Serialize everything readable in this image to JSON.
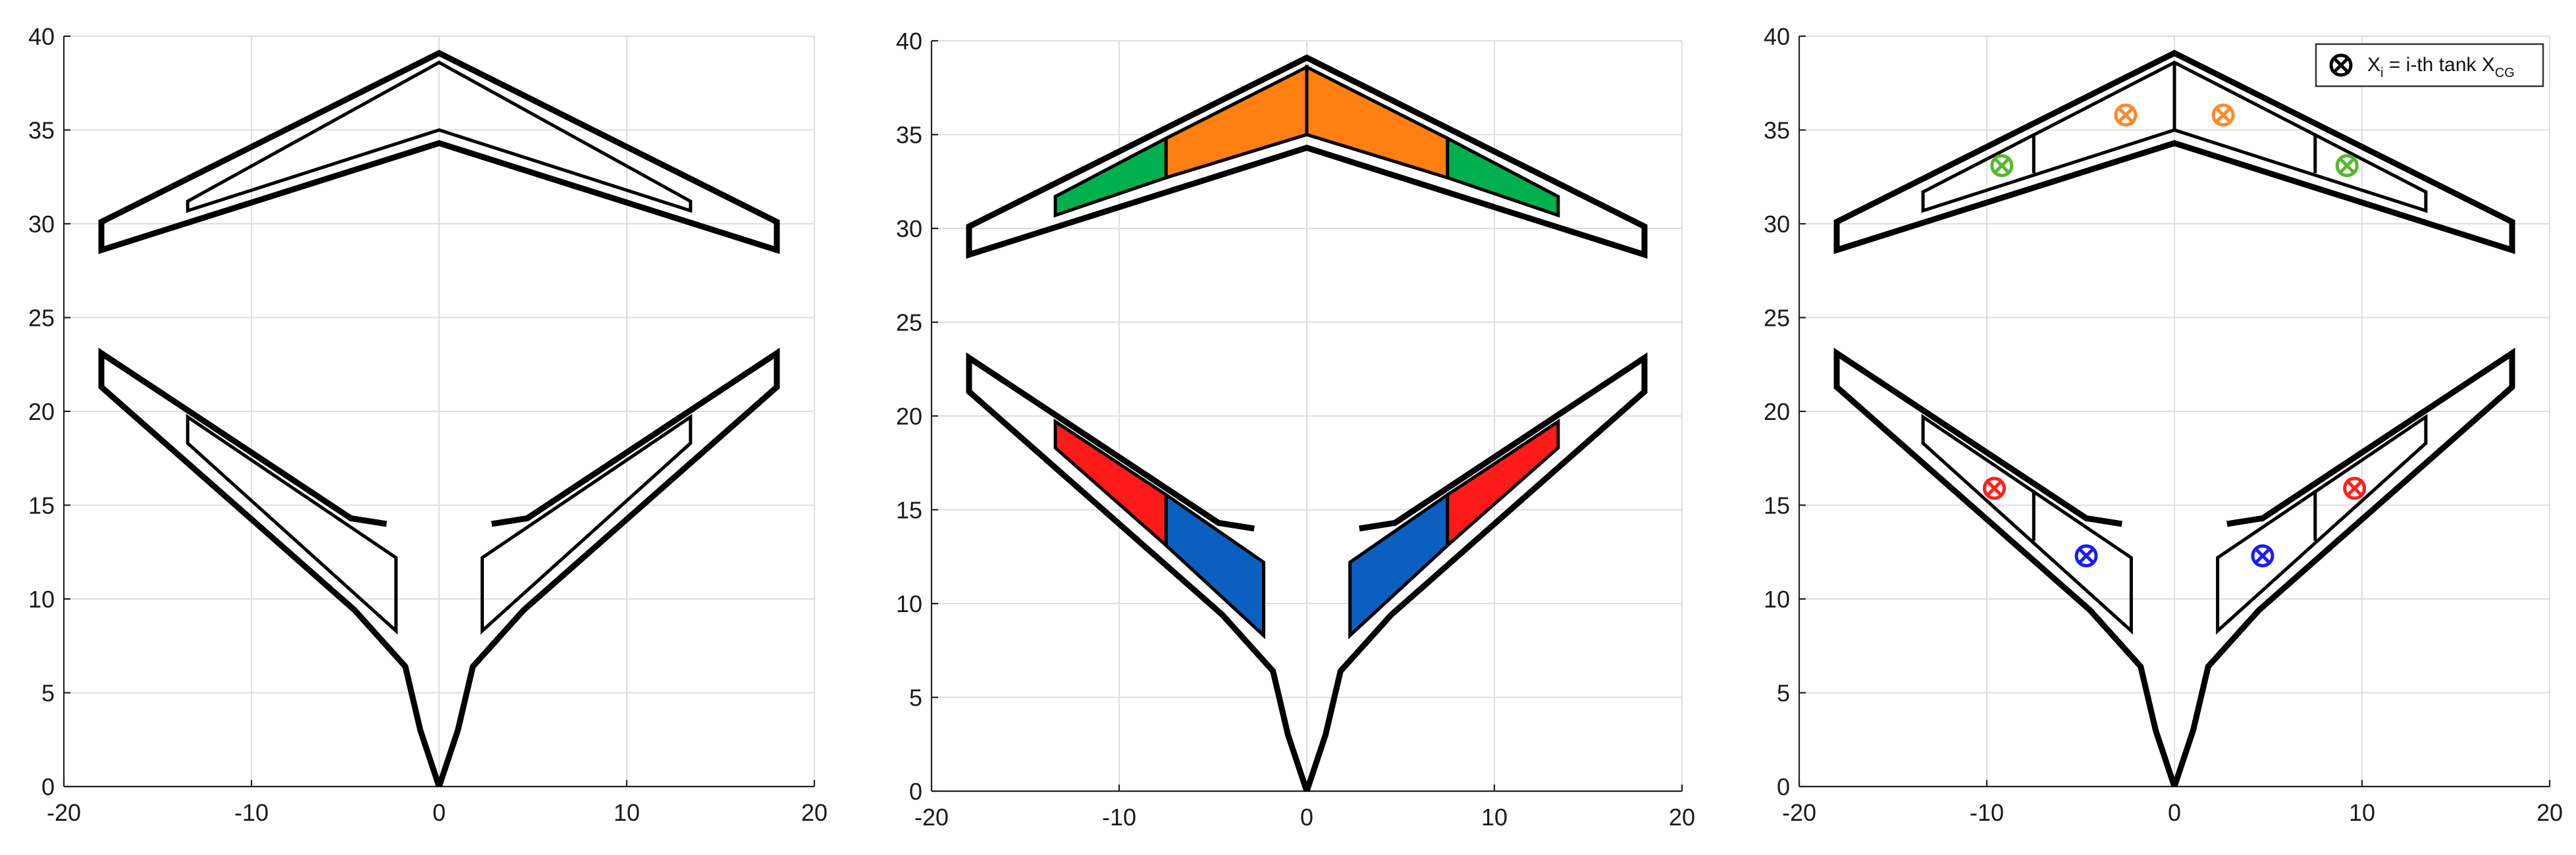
{
  "chart_data": [
    {
      "type": "planform",
      "panel": "outline",
      "xlim": [
        -20,
        20
      ],
      "ylim": [
        0,
        40
      ],
      "xticks": [
        -20,
        -10,
        0,
        10,
        20
      ],
      "yticks": [
        0,
        5,
        10,
        15,
        20,
        25,
        30,
        35,
        40
      ],
      "grid": true,
      "outlines": [
        {
          "name": "front-wing",
          "points": [
            [
              -18,
              30.1
            ],
            [
              0,
              39.1
            ],
            [
              18,
              30.1
            ],
            [
              18,
              28.6
            ],
            [
              0,
              34.3
            ],
            [
              -18,
              28.6
            ]
          ]
        },
        {
          "name": "rear-wing-left",
          "points": [
            [
              -2.8,
              14
            ],
            [
              -4.7,
              14.3
            ],
            [
              -18,
              23.1
            ],
            [
              -18,
              21.3
            ],
            [
              -4.5,
              9.4
            ],
            [
              -1.8,
              6.4
            ],
            [
              -1,
              3
            ],
            [
              0,
              0
            ]
          ]
        },
        {
          "name": "rear-wing-right",
          "points": [
            [
              2.8,
              14
            ],
            [
              4.7,
              14.3
            ],
            [
              18,
              23.1
            ],
            [
              18,
              21.3
            ],
            [
              4.5,
              9.4
            ],
            [
              1.8,
              6.4
            ],
            [
              1,
              3
            ],
            [
              0,
              0
            ]
          ]
        }
      ],
      "tanks": [
        {
          "name": "front-tank",
          "points": [
            [
              -13.4,
              31.2
            ],
            [
              0,
              38.6
            ],
            [
              13.4,
              31.2
            ],
            [
              13.4,
              30.7
            ],
            [
              0,
              35
            ],
            [
              -13.4,
              30.7
            ]
          ],
          "fill": "none"
        },
        {
          "name": "rear-tank-left",
          "points": [
            [
              -13.4,
              19.7
            ],
            [
              -2.3,
              12.2
            ],
            [
              -2.3,
              8.3
            ],
            [
              -13.4,
              18.3
            ]
          ],
          "fill": "none"
        },
        {
          "name": "rear-tank-right",
          "points": [
            [
              13.4,
              19.7
            ],
            [
              2.3,
              12.2
            ],
            [
              2.3,
              8.3
            ],
            [
              13.4,
              18.3
            ]
          ],
          "fill": "none"
        }
      ],
      "dividers": [],
      "cg_markers": []
    },
    {
      "type": "planform",
      "panel": "tanks-colored",
      "xlim": [
        -20,
        20
      ],
      "ylim": [
        0,
        40
      ],
      "xticks": [
        -20,
        -10,
        0,
        10,
        20
      ],
      "yticks": [
        0,
        5,
        10,
        15,
        20,
        25,
        30,
        35,
        40
      ],
      "grid": true,
      "outlines": [
        {
          "name": "front-wing",
          "points": [
            [
              -18,
              30.1
            ],
            [
              0,
              39.1
            ],
            [
              18,
              30.1
            ],
            [
              18,
              28.6
            ],
            [
              0,
              34.3
            ],
            [
              -18,
              28.6
            ]
          ]
        },
        {
          "name": "rear-wing-left",
          "points": [
            [
              -2.8,
              14
            ],
            [
              -4.7,
              14.3
            ],
            [
              -18,
              23.1
            ],
            [
              -18,
              21.3
            ],
            [
              -4.5,
              9.4
            ],
            [
              -1.8,
              6.4
            ],
            [
              -1,
              3
            ],
            [
              0,
              0
            ]
          ]
        },
        {
          "name": "rear-wing-right",
          "points": [
            [
              2.8,
              14
            ],
            [
              4.7,
              14.3
            ],
            [
              18,
              23.1
            ],
            [
              18,
              21.3
            ],
            [
              4.5,
              9.4
            ],
            [
              1.8,
              6.4
            ],
            [
              1,
              3
            ],
            [
              0,
              0
            ]
          ]
        }
      ],
      "tanks": [
        {
          "name": "front-outer-left",
          "points": [
            [
              -13.4,
              31.7
            ],
            [
              -7.5,
              34.8
            ],
            [
              -7.5,
              32.7
            ],
            [
              -13.4,
              30.7
            ]
          ],
          "fill": "#00b04f"
        },
        {
          "name": "front-inner-left",
          "points": [
            [
              -7.5,
              34.8
            ],
            [
              0,
              38.6
            ],
            [
              0,
              35
            ],
            [
              -7.5,
              32.7
            ]
          ],
          "fill": "#ff7f10"
        },
        {
          "name": "front-inner-right",
          "points": [
            [
              0,
              38.6
            ],
            [
              7.5,
              34.8
            ],
            [
              7.5,
              32.7
            ],
            [
              0,
              35
            ]
          ],
          "fill": "#ff7f10"
        },
        {
          "name": "front-outer-right",
          "points": [
            [
              7.5,
              34.8
            ],
            [
              13.4,
              31.7
            ],
            [
              13.4,
              30.7
            ],
            [
              7.5,
              32.7
            ]
          ],
          "fill": "#00b04f"
        },
        {
          "name": "rear-outer-left",
          "points": [
            [
              -13.4,
              19.7
            ],
            [
              -7.5,
              15.8
            ],
            [
              -7.5,
              13.1
            ],
            [
              -13.4,
              18.3
            ]
          ],
          "fill": "#ff1a1a"
        },
        {
          "name": "rear-inner-left",
          "points": [
            [
              -7.5,
              15.8
            ],
            [
              -2.3,
              12.2
            ],
            [
              -2.3,
              8.3
            ],
            [
              -7.5,
              13.1
            ]
          ],
          "fill": "#0a5fc0"
        },
        {
          "name": "rear-inner-right",
          "points": [
            [
              7.5,
              15.8
            ],
            [
              2.3,
              12.2
            ],
            [
              2.3,
              8.3
            ],
            [
              7.5,
              13.1
            ]
          ],
          "fill": "#0a5fc0"
        },
        {
          "name": "rear-outer-right",
          "points": [
            [
              13.4,
              19.7
            ],
            [
              7.5,
              15.8
            ],
            [
              7.5,
              13.1
            ],
            [
              13.4,
              18.3
            ]
          ],
          "fill": "#ff1a1a"
        }
      ],
      "dividers": [],
      "cg_markers": []
    },
    {
      "type": "planform",
      "panel": "tank-cg",
      "xlim": [
        -20,
        20
      ],
      "ylim": [
        0,
        40
      ],
      "xticks": [
        -20,
        -10,
        0,
        10,
        20
      ],
      "yticks": [
        0,
        5,
        10,
        15,
        20,
        25,
        30,
        35,
        40
      ],
      "grid": true,
      "outlines": [
        {
          "name": "front-wing",
          "points": [
            [
              -18,
              30.1
            ],
            [
              0,
              39.1
            ],
            [
              18,
              30.1
            ],
            [
              18,
              28.6
            ],
            [
              0,
              34.3
            ],
            [
              -18,
              28.6
            ]
          ]
        },
        {
          "name": "rear-wing-left",
          "points": [
            [
              -2.8,
              14
            ],
            [
              -4.7,
              14.3
            ],
            [
              -18,
              23.1
            ],
            [
              -18,
              21.3
            ],
            [
              -4.5,
              9.4
            ],
            [
              -1.8,
              6.4
            ],
            [
              -1,
              3
            ],
            [
              0,
              0
            ]
          ]
        },
        {
          "name": "rear-wing-right",
          "points": [
            [
              2.8,
              14
            ],
            [
              4.7,
              14.3
            ],
            [
              18,
              23.1
            ],
            [
              18,
              21.3
            ],
            [
              4.5,
              9.4
            ],
            [
              1.8,
              6.4
            ],
            [
              1,
              3
            ],
            [
              0,
              0
            ]
          ]
        }
      ],
      "tanks": [
        {
          "name": "front-tank",
          "points": [
            [
              -13.4,
              31.7
            ],
            [
              0,
              38.6
            ],
            [
              13.4,
              31.7
            ],
            [
              13.4,
              30.7
            ],
            [
              0,
              35
            ],
            [
              -13.4,
              30.7
            ]
          ],
          "fill": "none"
        },
        {
          "name": "rear-tank-left",
          "points": [
            [
              -13.4,
              19.7
            ],
            [
              -2.3,
              12.2
            ],
            [
              -2.3,
              8.3
            ],
            [
              -13.4,
              18.3
            ]
          ],
          "fill": "none"
        },
        {
          "name": "rear-tank-right",
          "points": [
            [
              13.4,
              19.7
            ],
            [
              2.3,
              12.2
            ],
            [
              2.3,
              8.3
            ],
            [
              13.4,
              18.3
            ]
          ],
          "fill": "none"
        }
      ],
      "dividers": [
        {
          "points": [
            [
              0,
              38.6
            ],
            [
              0,
              35
            ]
          ]
        },
        {
          "points": [
            [
              -7.5,
              34.8
            ],
            [
              -7.5,
              32.7
            ]
          ]
        },
        {
          "points": [
            [
              7.5,
              34.8
            ],
            [
              7.5,
              32.7
            ]
          ]
        },
        {
          "points": [
            [
              -7.5,
              15.8
            ],
            [
              -7.5,
              13.1
            ]
          ]
        },
        {
          "points": [
            [
              7.5,
              15.8
            ],
            [
              7.5,
              13.1
            ]
          ]
        }
      ],
      "cg_markers": [
        {
          "x": -9.2,
          "y": 33.1,
          "color": "#55b82f"
        },
        {
          "x": -2.6,
          "y": 35.8,
          "color": "#ff8a2a"
        },
        {
          "x": 2.6,
          "y": 35.8,
          "color": "#ff8a2a"
        },
        {
          "x": 9.2,
          "y": 33.1,
          "color": "#55b82f"
        },
        {
          "x": -9.6,
          "y": 15.9,
          "color": "#ff2020"
        },
        {
          "x": -4.7,
          "y": 12.3,
          "color": "#1a1aff"
        },
        {
          "x": 4.7,
          "y": 12.3,
          "color": "#1a1aff"
        },
        {
          "x": 9.6,
          "y": 15.9,
          "color": "#ff2020"
        }
      ],
      "legend": {
        "position": "top-right",
        "main": "X",
        "sub_i": "i",
        "middle": " = i-th tank X",
        "sub_cg": "CG"
      }
    }
  ]
}
